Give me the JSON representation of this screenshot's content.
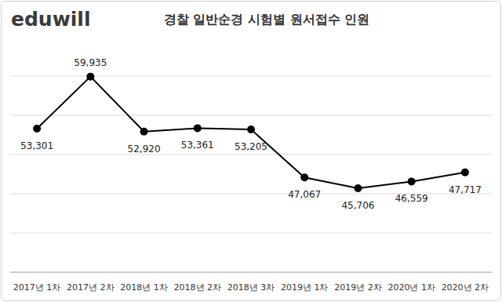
{
  "chart_data": {
    "type": "line",
    "brand": "eduwill",
    "title": "경찰 일반순경 시험별 원서접수 인원",
    "categories": [
      "2017년 1차",
      "2017년 2차",
      "2018년 1차",
      "2018년 2차",
      "2018년 3차",
      "2019년 1차",
      "2019년 2차",
      "2020년 1차",
      "2020년 2차"
    ],
    "values": [
      53301,
      59935,
      52920,
      53361,
      53205,
      47067,
      45706,
      46559,
      47717
    ],
    "value_labels": [
      "53,301",
      "59,935",
      "52,920",
      "53,361",
      "53,205",
      "47,067",
      "45,706",
      "46,559",
      "47,717"
    ],
    "color": "#000000",
    "marker": "circle",
    "line_style": "solid",
    "ylim": [
      35000,
      60000
    ],
    "yticks": [
      35000,
      40000,
      45000,
      50000,
      55000,
      60000
    ],
    "grid": true,
    "data_labels": true,
    "tick_labels": "x"
  }
}
